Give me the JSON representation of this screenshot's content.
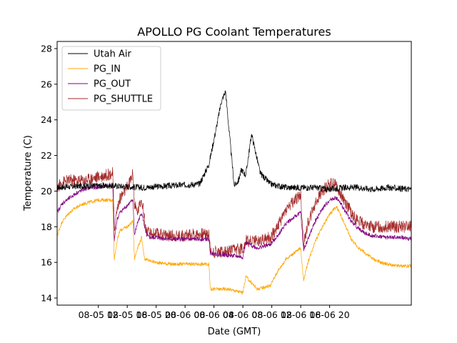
{
  "chart_data": {
    "type": "line",
    "title": "APOLLO PG Coolant Temperatures",
    "xlabel": "Date (GMT)",
    "ylabel": "Temperature (C)",
    "x_units": "hours since 2024-08-05 00:00 GMT",
    "xlim": [
      6.3,
      55.3
    ],
    "ylim": [
      13.6,
      28.4
    ],
    "grid": false,
    "legend_position": "top-left",
    "x_ticks": [
      {
        "value": 12,
        "label": "08-05 12"
      },
      {
        "value": 16,
        "label": "08-05 16"
      },
      {
        "value": 20,
        "label": "08-05 20"
      },
      {
        "value": 24,
        "label": "08-06 00"
      },
      {
        "value": 28,
        "label": "08-06 04"
      },
      {
        "value": 32,
        "label": "08-06 08"
      },
      {
        "value": 36,
        "label": "08-06 12"
      },
      {
        "value": 40,
        "label": "08-06 16"
      },
      {
        "value": 44,
        "label": "08-06 20"
      }
    ],
    "y_ticks": [
      {
        "value": 14,
        "label": "14"
      },
      {
        "value": 16,
        "label": "16"
      },
      {
        "value": 18,
        "label": "18"
      },
      {
        "value": 20,
        "label": "20"
      },
      {
        "value": 22,
        "label": "22"
      },
      {
        "value": 24,
        "label": "24"
      },
      {
        "value": 26,
        "label": "26"
      },
      {
        "value": 28,
        "label": "28"
      }
    ],
    "series": [
      {
        "name": "Utah Air",
        "color": "#000000",
        "x": [
          6.3,
          10,
          14,
          18,
          22,
          26,
          27.3,
          28.3,
          29,
          29.6,
          30,
          30.8,
          31.4,
          31.8,
          32.4,
          33.2,
          34.4,
          35.8,
          36.8,
          38,
          40,
          42,
          44,
          46,
          48,
          50,
          52,
          55.3
        ],
        "y": [
          20.2,
          20.3,
          20.3,
          20.2,
          20.3,
          20.4,
          21.5,
          23.5,
          25.0,
          25.6,
          23.8,
          20.3,
          20.6,
          21.2,
          20.9,
          23.2,
          21.0,
          20.4,
          20.3,
          20.2,
          20.2,
          20.2,
          20.1,
          20.2,
          20.2,
          20.1,
          20.2,
          20.1
        ]
      },
      {
        "name": "PG_IN",
        "color": "#ffa500",
        "x": [
          6.3,
          7,
          8,
          9,
          10,
          11,
          12,
          13,
          14,
          14.2,
          14.6,
          15,
          16,
          16.8,
          17,
          17.4,
          18,
          18.4,
          19,
          20,
          22,
          24,
          26,
          27.3,
          27.5,
          28,
          30,
          32,
          32.4,
          34,
          35.8,
          36.8,
          38,
          40,
          40.4,
          41,
          42,
          43,
          44,
          44.6,
          45,
          46,
          47,
          48,
          49,
          50,
          51,
          52,
          53,
          54,
          55.3
        ],
        "y": [
          17.5,
          18.3,
          18.8,
          19.1,
          19.3,
          19.4,
          19.5,
          19.5,
          19.5,
          16.2,
          17.2,
          17.8,
          18.0,
          18.3,
          16.2,
          16.8,
          17.4,
          16.2,
          16.1,
          16.0,
          15.9,
          15.9,
          15.9,
          15.9,
          14.5,
          14.5,
          14.5,
          14.3,
          15.2,
          14.5,
          14.7,
          15.5,
          16.2,
          16.8,
          15.0,
          16.0,
          17.2,
          18.0,
          18.7,
          19.0,
          19.1,
          18.2,
          17.3,
          16.8,
          16.5,
          16.2,
          16.0,
          15.9,
          15.8,
          15.8,
          15.8
        ]
      },
      {
        "name": "PG_OUT",
        "color": "#800080",
        "x": [
          6.3,
          7,
          8,
          9,
          10,
          11,
          12,
          13,
          14,
          14.2,
          14.6,
          15,
          16,
          16.8,
          17,
          17.4,
          18,
          18.6,
          19,
          20,
          22,
          24,
          26,
          27.3,
          27.5,
          28,
          30,
          32,
          32.4,
          34,
          35.8,
          36.8,
          38,
          40,
          40.4,
          41,
          42,
          43,
          44,
          44.6,
          45,
          46,
          47,
          48,
          49,
          50,
          52,
          54,
          55.3
        ],
        "y": [
          18.8,
          19.3,
          19.6,
          19.9,
          20.1,
          20.2,
          20.2,
          20.3,
          20.3,
          17.2,
          18.4,
          18.8,
          19.2,
          19.5,
          17.5,
          18.2,
          18.8,
          17.6,
          17.4,
          17.4,
          17.3,
          17.3,
          17.3,
          17.3,
          16.5,
          16.5,
          16.4,
          16.3,
          17.1,
          16.8,
          17.0,
          17.5,
          18.2,
          18.8,
          16.7,
          17.3,
          18.3,
          19.0,
          19.5,
          19.6,
          19.6,
          19.0,
          18.3,
          17.9,
          17.6,
          17.5,
          17.4,
          17.4,
          17.3
        ]
      },
      {
        "name": "PG_SHUTTLE",
        "color": "#a52a2a",
        "x": [
          6.3,
          7,
          8,
          9,
          10,
          11,
          12,
          13,
          14,
          14.2,
          14.6,
          15,
          16,
          16.8,
          17,
          17.4,
          18,
          18.6,
          19,
          20,
          22,
          24,
          26,
          27.3,
          27.5,
          28,
          30,
          32,
          32.4,
          34,
          35.8,
          36.8,
          38,
          40,
          40.4,
          41,
          42,
          43,
          44,
          44.6,
          45,
          46,
          47,
          48,
          49,
          50,
          52,
          54,
          55.3
        ],
        "y": [
          20.2,
          20.5,
          20.6,
          20.6,
          20.6,
          20.7,
          20.8,
          20.9,
          21.0,
          17.8,
          19.0,
          19.6,
          20.2,
          21.0,
          19.2,
          18.8,
          19.6,
          17.8,
          17.6,
          17.6,
          17.5,
          17.5,
          17.6,
          17.6,
          16.6,
          16.6,
          16.6,
          16.8,
          17.2,
          17.2,
          17.4,
          18.0,
          19.0,
          19.8,
          17.0,
          18.2,
          19.3,
          20.0,
          20.4,
          20.4,
          20.3,
          19.5,
          18.8,
          18.3,
          18.1,
          18.0,
          18.0,
          18.0,
          18.0
        ]
      }
    ]
  }
}
